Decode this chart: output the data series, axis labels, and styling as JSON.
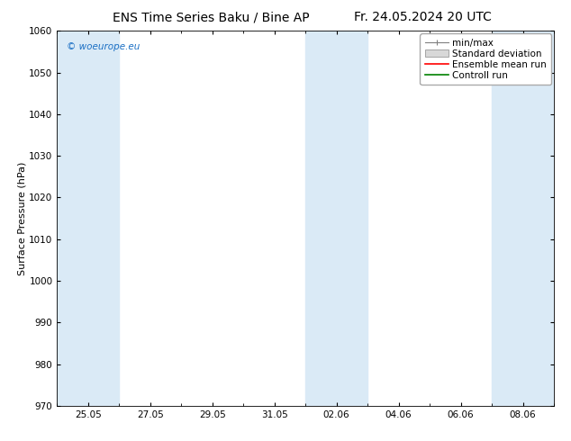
{
  "title_left": "ENS Time Series Baku / Bine AP",
  "title_right": "Fr. 24.05.2024 20 UTC",
  "ylabel": "Surface Pressure (hPa)",
  "ylim": [
    970,
    1060
  ],
  "yticks": [
    970,
    980,
    990,
    1000,
    1010,
    1020,
    1030,
    1040,
    1050,
    1060
  ],
  "xtick_labels": [
    "25.05",
    "27.05",
    "29.05",
    "31.05",
    "02.06",
    "04.06",
    "06.06",
    "08.06"
  ],
  "xtick_positions": [
    1,
    3,
    5,
    7,
    9,
    11,
    13,
    15
  ],
  "xlim": [
    0,
    16
  ],
  "shaded_bands": [
    {
      "x_start": 0,
      "x_end": 2,
      "color": "#daeaf6"
    },
    {
      "x_start": 8,
      "x_end": 10,
      "color": "#daeaf6"
    },
    {
      "x_start": 14,
      "x_end": 16,
      "color": "#daeaf6"
    }
  ],
  "legend_items": [
    {
      "label": "min/max",
      "type": "hline",
      "color": "#808080"
    },
    {
      "label": "Standard deviation",
      "type": "fill",
      "color": "#c8c8c8"
    },
    {
      "label": "Ensemble mean run",
      "type": "line",
      "color": "#ff0000"
    },
    {
      "label": "Controll run",
      "type": "line",
      "color": "#008000"
    }
  ],
  "watermark": "© woeurope.eu",
  "watermark_color": "#1a6fc4",
  "bg_color": "#ffffff",
  "plot_bg_color": "#ffffff",
  "title_fontsize": 10,
  "axis_label_fontsize": 8,
  "tick_fontsize": 7.5,
  "legend_fontsize": 7.5
}
